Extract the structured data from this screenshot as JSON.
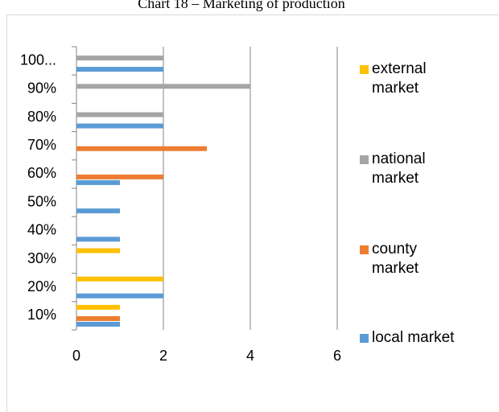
{
  "chart_data": {
    "type": "hbar",
    "title": "Chart 18 – Marketing of production",
    "categories": [
      "10%",
      "20%",
      "30%",
      "40%",
      "50%",
      "60%",
      "70%",
      "80%",
      "90%",
      "100..."
    ],
    "series": [
      {
        "name": "local market",
        "color": "#5b9bd5",
        "values": [
          1,
          2,
          0,
          1,
          1,
          1,
          0,
          2,
          0,
          2
        ]
      },
      {
        "name": "county market",
        "color": "#ed7d31",
        "values": [
          1,
          0,
          0,
          0,
          0,
          2,
          3,
          0,
          0,
          0
        ]
      },
      {
        "name": "national market",
        "color": "#a5a5a5",
        "values": [
          0,
          0,
          0,
          0,
          0,
          0,
          0,
          2,
          4,
          2
        ]
      },
      {
        "name": "external market",
        "color": "#ffc000",
        "values": [
          1,
          2,
          1,
          0,
          0,
          0,
          0,
          0,
          0,
          0
        ]
      }
    ],
    "xlim": [
      0,
      6
    ],
    "xticks": [
      0,
      2,
      4,
      6
    ],
    "grid": true,
    "legend": "right"
  }
}
